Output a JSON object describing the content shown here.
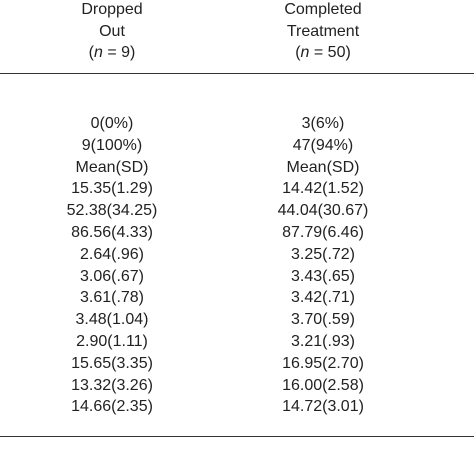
{
  "table": {
    "columns": [
      {
        "header": [
          "Dropped",
          "Out"
        ],
        "n_open": "(",
        "n_symbol": "n",
        "n_rest": " = 9)"
      },
      {
        "header": [
          "Completed",
          "Treatment"
        ],
        "n_open": "(",
        "n_symbol": "n",
        "n_rest": " = 50)"
      }
    ],
    "rows": [
      [
        "0(0%)",
        "3(6%)"
      ],
      [
        "9(100%)",
        "47(94%)"
      ],
      [
        "Mean(SD)",
        "Mean(SD)"
      ],
      [
        "15.35(1.29)",
        "14.42(1.52)"
      ],
      [
        "52.38(34.25)",
        "44.04(30.67)"
      ],
      [
        "86.56(4.33)",
        "87.79(6.46)"
      ],
      [
        "2.64(.96)",
        "3.25(.72)"
      ],
      [
        "3.06(.67)",
        "3.43(.65)"
      ],
      [
        "3.61(.78)",
        "3.42(.71)"
      ],
      [
        "3.48(1.04)",
        "3.70(.59)"
      ],
      [
        "2.90(1.11)",
        "3.21(.93)"
      ],
      [
        "15.65(3.35)",
        "16.95(2.70)"
      ],
      [
        "13.32(3.26)",
        "16.00(2.58)"
      ],
      [
        "14.66(2.35)",
        "14.72(3.01)"
      ]
    ]
  }
}
